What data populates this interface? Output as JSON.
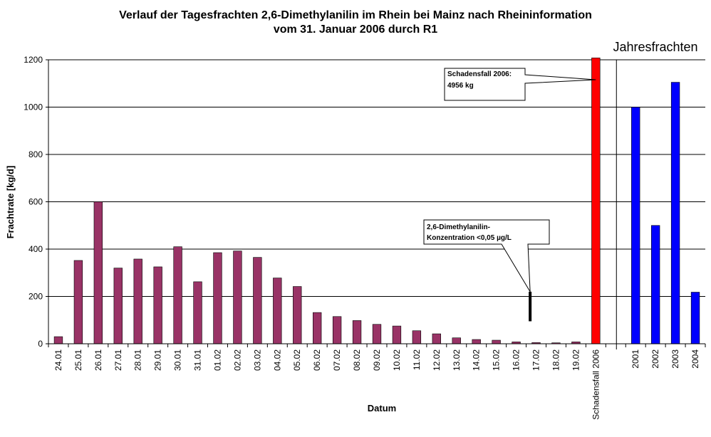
{
  "chart_data": {
    "type": "bar",
    "title_line1": "Verlauf der Tagesfrachten 2,6-Dimethylanilin im Rhein bei Mainz nach Rheininformation",
    "title_line2": "vom 31. Januar 2006 durch R1",
    "xlabel": "Datum",
    "ylabel": "Frachtrate [kg/d]",
    "ylim": [
      0,
      1200
    ],
    "yticks": [
      0,
      200,
      400,
      600,
      800,
      1000,
      1200
    ],
    "grid": true,
    "section_label": "Jahresfrachten",
    "colors": {
      "daily": "#993366",
      "incident": "#ff0000",
      "annual": "#0000ff",
      "note": "#000000"
    },
    "categories": [
      "24.01",
      "25.01",
      "26.01",
      "27.01",
      "28.01",
      "29.01",
      "30.01",
      "31.01",
      "01.02",
      "02.02",
      "03.02",
      "04.02",
      "05.02",
      "06.02",
      "07.02",
      "08.02",
      "09.02",
      "10.02",
      "11.02",
      "12.02",
      "13.02",
      "14.02",
      "15.02",
      "16.02",
      "17.02",
      "18.02",
      "19.02",
      "Schadensfall 2006",
      "",
      "2001",
      "2002",
      "2003",
      "2004"
    ],
    "series": [
      {
        "values": [
          30,
          352,
          600,
          320,
          358,
          325,
          410,
          262,
          385,
          392,
          365,
          278,
          242,
          132,
          115,
          98,
          82,
          75,
          55,
          42,
          25,
          18,
          15,
          8,
          5,
          4,
          8,
          null,
          null,
          null,
          null,
          null,
          null
        ]
      },
      {
        "values": [
          null,
          null,
          null,
          null,
          null,
          null,
          null,
          null,
          null,
          null,
          null,
          null,
          null,
          null,
          null,
          null,
          null,
          null,
          null,
          null,
          null,
          null,
          null,
          null,
          null,
          null,
          null,
          1210,
          null,
          null,
          null,
          null,
          null
        ]
      },
      {
        "values": [
          null,
          null,
          null,
          null,
          null,
          null,
          null,
          null,
          null,
          null,
          null,
          null,
          null,
          null,
          null,
          null,
          null,
          null,
          null,
          null,
          null,
          null,
          null,
          null,
          null,
          null,
          null,
          null,
          null,
          1000,
          500,
          1105,
          218
        ]
      }
    ],
    "annotations": [
      {
        "text_lines": [
          "Schadensfall 2006:",
          "4956 kg"
        ],
        "target_category": "Schadensfall 2006"
      },
      {
        "text_lines": [
          "2,6-Dimethylanilin-",
          "Konzentration <0,05 µg/L"
        ],
        "target_category": "17.02",
        "range": [
          95,
          220
        ]
      }
    ]
  }
}
